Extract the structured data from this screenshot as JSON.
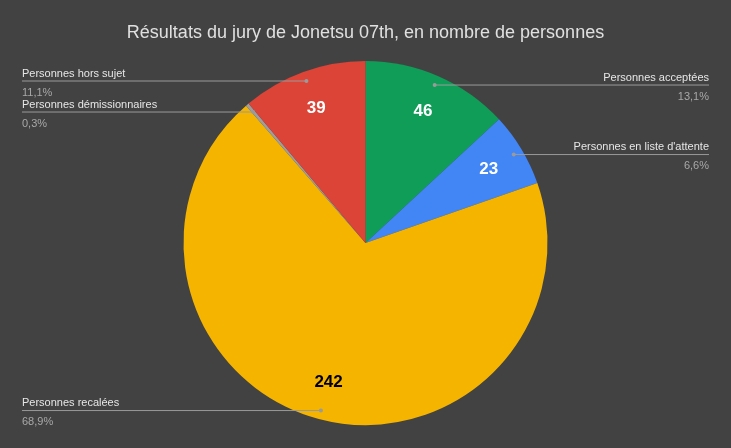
{
  "chart_data": {
    "type": "pie",
    "title": "Résultats du jury de Jonetsu 07th, en nombre de personnes",
    "categories": [
      "Personnes acceptées",
      "Personnes en liste d'attente",
      "Personnes recalées",
      "Personnes démissionnaires",
      "Personnes hors sujet"
    ],
    "values": [
      46,
      23,
      242,
      1,
      39
    ],
    "value_labels": [
      "46",
      "23",
      "242",
      null,
      "39"
    ],
    "percentages": [
      13.1,
      6.6,
      68.9,
      0.3,
      11.1
    ],
    "percentage_labels": [
      "13,1%",
      "6,6%",
      "68,9%",
      "0,3%",
      "11,1%"
    ],
    "colors": [
      "#0f9d58",
      "#4285f4",
      "#f4b400",
      "#9e9e9e",
      "#db4437"
    ],
    "data_labels": true
  }
}
